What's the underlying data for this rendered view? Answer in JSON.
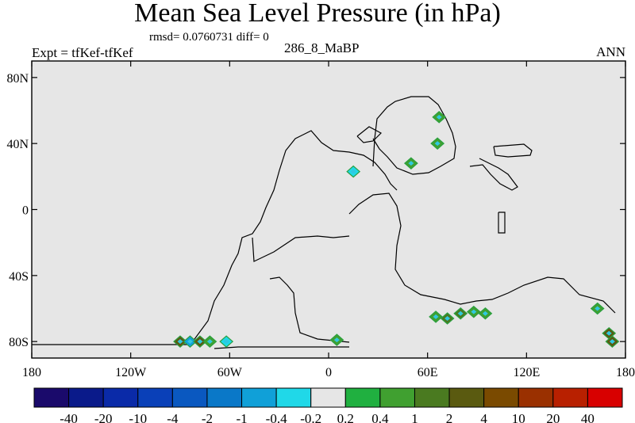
{
  "header": {
    "title": "Mean Sea Level Pressure (in hPa)",
    "stats": "rmsd= 0.0760731 diff= 0",
    "experiment": "Expt = tfKef-tfKef",
    "center_label": "286_8_MaBP",
    "season": "ANN"
  },
  "chart_data": {
    "type": "heatmap",
    "title": "Mean Sea Level Pressure (in hPa)",
    "xlabel": "",
    "ylabel": "",
    "xlim": [
      -180,
      180
    ],
    "ylim": [
      -90,
      90
    ],
    "x_ticks": [
      {
        "value": -180,
        "label": "180"
      },
      {
        "value": -120,
        "label": "120W"
      },
      {
        "value": -60,
        "label": "60W"
      },
      {
        "value": 0,
        "label": "0"
      },
      {
        "value": 60,
        "label": "60E"
      },
      {
        "value": 120,
        "label": "120E"
      },
      {
        "value": 180,
        "label": "180"
      }
    ],
    "y_ticks": [
      {
        "value": 80,
        "label": "80N"
      },
      {
        "value": 40,
        "label": "40N"
      },
      {
        "value": 0,
        "label": "0"
      },
      {
        "value": -40,
        "label": "40S"
      },
      {
        "value": -80,
        "label": "80S"
      }
    ],
    "background_color": "#e6e6e6",
    "colorbar": {
      "labels": [
        "-40",
        "-20",
        "-10",
        "-4",
        "-2",
        "-1",
        "-0.4",
        "-0.2",
        "0.2",
        "0.4",
        "1",
        "2",
        "4",
        "10",
        "20",
        "40"
      ],
      "colors": [
        "#1a0a6b",
        "#0a1a8a",
        "#0a2aa8",
        "#0a40b8",
        "#0a58c0",
        "#0a78c8",
        "#10a0d8",
        "#20d8e8",
        "#e6e6e6",
        "#20b040",
        "#40a030",
        "#4a7a20",
        "#5a5a10",
        "#7a4a00",
        "#9a3000",
        "#b82000",
        "#d80000"
      ]
    },
    "anomalies": [
      {
        "lon": -90,
        "lat": -80,
        "level": "2"
      },
      {
        "lon": -84,
        "lat": -80,
        "level": "-0.4"
      },
      {
        "lon": -78,
        "lat": -80,
        "level": "2"
      },
      {
        "lon": -72,
        "lat": -80,
        "level": "0.4"
      },
      {
        "lon": -62,
        "lat": -80,
        "level": "-0.2"
      },
      {
        "lon": 5,
        "lat": -79,
        "level": "0.4"
      },
      {
        "lon": 65,
        "lat": -65,
        "level": "0.4"
      },
      {
        "lon": 72,
        "lat": -66,
        "level": "1"
      },
      {
        "lon": 80,
        "lat": -63,
        "level": "1"
      },
      {
        "lon": 88,
        "lat": -62,
        "level": "0.4"
      },
      {
        "lon": 95,
        "lat": -63,
        "level": "0.4"
      },
      {
        "lon": 163,
        "lat": -60,
        "level": "0.4"
      },
      {
        "lon": 170,
        "lat": -75,
        "level": "2"
      },
      {
        "lon": 172,
        "lat": -80,
        "level": "2"
      },
      {
        "lon": 67,
        "lat": 56,
        "level": "0.4"
      },
      {
        "lon": 66,
        "lat": 40,
        "level": "0.4"
      },
      {
        "lon": 50,
        "lat": 28,
        "level": "0.4"
      },
      {
        "lon": 15,
        "lat": 23,
        "level": "-0.2"
      }
    ]
  }
}
